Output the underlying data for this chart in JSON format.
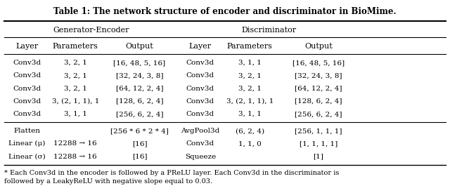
{
  "title": "Table 1: The network structure of encoder and discriminator in BioMime.",
  "section_headers": [
    "Generator-Encoder",
    "Discriminator"
  ],
  "col_headers": [
    "Layer",
    "Parameters",
    "Output",
    "Layer",
    "Parameters",
    "Output"
  ],
  "gen_rows": [
    [
      "Conv3d",
      "3, 2, 1",
      "[16, 48, 5, 16]"
    ],
    [
      "Conv3d",
      "3, 2, 1",
      "[32, 24, 3, 8]"
    ],
    [
      "Conv3d",
      "3, 2, 1",
      "[64, 12, 2, 4]"
    ],
    [
      "Conv3d",
      "3, (2, 1, 1), 1",
      "[128, 6, 2, 4]"
    ],
    [
      "Conv3d",
      "3, 1, 1",
      "[256, 6, 2, 4]"
    ]
  ],
  "disc_rows": [
    [
      "Conv3d",
      "3, 1, 1",
      "[16, 48, 5, 16]"
    ],
    [
      "Conv3d",
      "3, 2, 1",
      "[32, 24, 3, 8]"
    ],
    [
      "Conv3d",
      "3, 2, 1",
      "[64, 12, 2, 4]"
    ],
    [
      "Conv3d",
      "3, (2, 1, 1), 1",
      "[128, 6, 2, 4]"
    ],
    [
      "Conv3d",
      "3, 1, 1",
      "[256, 6, 2, 4]"
    ]
  ],
  "gen_bottom_rows": [
    [
      "Flatten",
      "",
      "[256 * 6 * 2 * 4]"
    ],
    [
      "Linear (μ)",
      "12288 → 16",
      "[16]"
    ],
    [
      "Linear (σ)",
      "12288 → 16",
      "[16]"
    ]
  ],
  "disc_bottom_rows": [
    [
      "AvgPool3d",
      "(6, 2, 4)",
      "[256, 1, 1, 1]"
    ],
    [
      "Conv3d",
      "1, 1, 0",
      "[1, 1, 1, 1]"
    ],
    [
      "Squeeze",
      "",
      "[1]"
    ]
  ],
  "footnote": "* Each Conv3d in the encoder is followed by a PReLU layer. Each Conv3d in the discriminator is\nfollowed by a LeakyReLU with negative slope equal to 0.03.",
  "bg_color": "#ffffff",
  "text_color": "#000000",
  "font_size": 7.5,
  "title_font_size": 8.5
}
